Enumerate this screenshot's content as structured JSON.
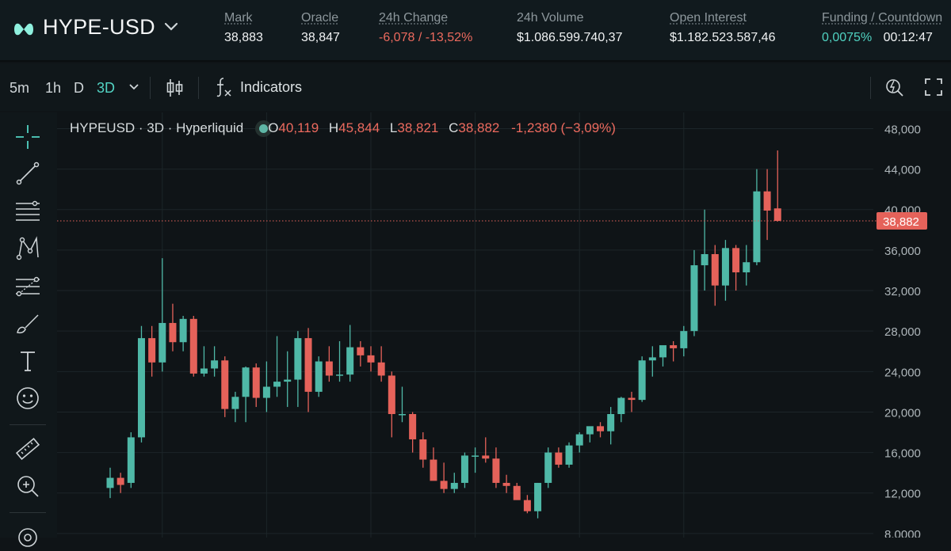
{
  "header": {
    "pair": "HYPE-USD",
    "stats": [
      {
        "label": "Mark",
        "value": "38,883",
        "tone": "normal"
      },
      {
        "label": "Oracle",
        "value": "38,847",
        "tone": "normal"
      },
      {
        "label": "24h Change",
        "value": "-6,078 / -13,52%",
        "tone": "red"
      },
      {
        "label": "24h Volume",
        "value": "$1.086.599.740,37",
        "tone": "normal"
      },
      {
        "label": "Open Interest",
        "value": "$1.182.523.587,46",
        "tone": "normal"
      },
      {
        "label": "Funding / Countdown",
        "value": "0,0075%",
        "value2": "00:12:47",
        "tone": "teal"
      }
    ]
  },
  "toolbar": {
    "timeframes": [
      "5m",
      "1h",
      "D",
      "3D"
    ],
    "active_timeframe": "3D",
    "indicators_label": "Indicators"
  },
  "left_tools": [
    "crosshair-icon",
    "trend-line-icon",
    "horizontal-lines-icon",
    "pattern-icon",
    "fib-icon",
    "brush-icon",
    "text-icon",
    "emoji-icon",
    "ruler-icon",
    "zoom-in-icon",
    "magnet-icon"
  ],
  "legend": {
    "symbol": "HYPEUSD · 3D · Hyperliquid",
    "o_label": "O",
    "o": "40,119",
    "h_label": "H",
    "h": "45,844",
    "l_label": "L",
    "l": "38,821",
    "c_label": "C",
    "c": "38,882",
    "change": "-1,2380 (−3,09%)"
  },
  "colors": {
    "up": "#4fb8a7",
    "down": "#e5625a",
    "bg": "#0f1417",
    "accent": "#52d3c3"
  },
  "chart_data": {
    "type": "candlestick",
    "y_axis_ticks": [
      {
        "value": 8,
        "label": "8,0000"
      },
      {
        "value": 12,
        "label": "12,000"
      },
      {
        "value": 16,
        "label": "16,000"
      },
      {
        "value": 20,
        "label": "20,000"
      },
      {
        "value": 24,
        "label": "24,000"
      },
      {
        "value": 28,
        "label": "28,000"
      },
      {
        "value": 32,
        "label": "32,000"
      },
      {
        "value": 36,
        "label": "36,000"
      },
      {
        "value": 40,
        "label": "40,000"
      },
      {
        "value": 44,
        "label": "44,000"
      },
      {
        "value": 48,
        "label": "48,000"
      }
    ],
    "ylim": [
      7.6,
      49.6
    ],
    "last_price": {
      "value": 38.882,
      "label": "38,882"
    },
    "grid": true,
    "candles": [
      {
        "o": 12.5,
        "h": 14.5,
        "l": 11.5,
        "c": 13.5
      },
      {
        "o": 13.5,
        "h": 14.0,
        "l": 12.0,
        "c": 12.8
      },
      {
        "o": 13.0,
        "h": 18.0,
        "l": 12.5,
        "c": 17.5
      },
      {
        "o": 17.5,
        "h": 28.5,
        "l": 17.0,
        "c": 27.3
      },
      {
        "o": 27.3,
        "h": 28.5,
        "l": 23.5,
        "c": 24.9
      },
      {
        "o": 24.9,
        "h": 35.2,
        "l": 24.0,
        "c": 28.8
      },
      {
        "o": 28.8,
        "h": 30.7,
        "l": 26.0,
        "c": 26.9
      },
      {
        "o": 26.9,
        "h": 29.5,
        "l": 26.0,
        "c": 29.2
      },
      {
        "o": 29.2,
        "h": 29.5,
        "l": 23.5,
        "c": 23.8
      },
      {
        "o": 23.8,
        "h": 26.5,
        "l": 23.5,
        "c": 24.3
      },
      {
        "o": 24.3,
        "h": 26.5,
        "l": 23.5,
        "c": 25.1
      },
      {
        "o": 25.1,
        "h": 25.5,
        "l": 19.5,
        "c": 20.3
      },
      {
        "o": 20.3,
        "h": 22.0,
        "l": 19.0,
        "c": 21.5
      },
      {
        "o": 21.5,
        "h": 24.5,
        "l": 19.0,
        "c": 24.4
      },
      {
        "o": 24.4,
        "h": 24.8,
        "l": 20.5,
        "c": 21.4
      },
      {
        "o": 21.4,
        "h": 25.0,
        "l": 20.0,
        "c": 22.5
      },
      {
        "o": 22.5,
        "h": 27.5,
        "l": 21.5,
        "c": 23.0
      },
      {
        "o": 23.0,
        "h": 26.0,
        "l": 20.5,
        "c": 23.2
      },
      {
        "o": 23.2,
        "h": 28.0,
        "l": 20.5,
        "c": 27.3
      },
      {
        "o": 27.3,
        "h": 28.3,
        "l": 20.0,
        "c": 22.0
      },
      {
        "o": 22.0,
        "h": 25.5,
        "l": 21.5,
        "c": 25.0
      },
      {
        "o": 25.0,
        "h": 26.5,
        "l": 23.0,
        "c": 23.6
      },
      {
        "o": 23.6,
        "h": 27.0,
        "l": 23.0,
        "c": 23.7
      },
      {
        "o": 23.7,
        "h": 28.6,
        "l": 23.0,
        "c": 26.4
      },
      {
        "o": 26.4,
        "h": 27.0,
        "l": 24.5,
        "c": 25.6
      },
      {
        "o": 25.6,
        "h": 26.5,
        "l": 24.0,
        "c": 24.9
      },
      {
        "o": 24.9,
        "h": 26.5,
        "l": 23.0,
        "c": 23.6
      },
      {
        "o": 23.6,
        "h": 24.0,
        "l": 17.5,
        "c": 19.8
      },
      {
        "o": 19.8,
        "h": 22.5,
        "l": 19.0,
        "c": 19.8
      },
      {
        "o": 19.8,
        "h": 20.0,
        "l": 16.0,
        "c": 17.3
      },
      {
        "o": 17.3,
        "h": 18.0,
        "l": 14.5,
        "c": 15.3
      },
      {
        "o": 15.3,
        "h": 16.5,
        "l": 13.5,
        "c": 13.2
      },
      {
        "o": 13.2,
        "h": 15.0,
        "l": 12.0,
        "c": 12.4
      },
      {
        "o": 12.4,
        "h": 14.0,
        "l": 12.0,
        "c": 13.0
      },
      {
        "o": 13.0,
        "h": 16.0,
        "l": 12.5,
        "c": 15.7
      },
      {
        "o": 15.7,
        "h": 16.5,
        "l": 14.0,
        "c": 15.7
      },
      {
        "o": 15.7,
        "h": 17.5,
        "l": 15.0,
        "c": 15.4
      },
      {
        "o": 15.4,
        "h": 16.5,
        "l": 12.5,
        "c": 13.0
      },
      {
        "o": 13.0,
        "h": 13.8,
        "l": 12.0,
        "c": 12.7
      },
      {
        "o": 12.7,
        "h": 13.0,
        "l": 11.5,
        "c": 11.3
      },
      {
        "o": 11.3,
        "h": 11.8,
        "l": 10.0,
        "c": 10.2
      },
      {
        "o": 10.2,
        "h": 13.0,
        "l": 9.5,
        "c": 13.0
      },
      {
        "o": 13.0,
        "h": 16.5,
        "l": 12.5,
        "c": 16.0
      },
      {
        "o": 16.0,
        "h": 16.5,
        "l": 14.5,
        "c": 14.8
      },
      {
        "o": 14.8,
        "h": 17.0,
        "l": 14.5,
        "c": 16.7
      },
      {
        "o": 16.7,
        "h": 18.0,
        "l": 16.0,
        "c": 17.8
      },
      {
        "o": 17.8,
        "h": 18.5,
        "l": 17.0,
        "c": 18.6
      },
      {
        "o": 18.6,
        "h": 19.0,
        "l": 17.5,
        "c": 18.1
      },
      {
        "o": 18.1,
        "h": 20.5,
        "l": 16.8,
        "c": 19.8
      },
      {
        "o": 19.8,
        "h": 21.5,
        "l": 19.0,
        "c": 21.4
      },
      {
        "o": 21.4,
        "h": 22.0,
        "l": 20.0,
        "c": 21.2
      },
      {
        "o": 21.2,
        "h": 25.5,
        "l": 21.0,
        "c": 25.1
      },
      {
        "o": 25.1,
        "h": 26.5,
        "l": 23.5,
        "c": 25.4
      },
      {
        "o": 25.4,
        "h": 26.5,
        "l": 24.5,
        "c": 26.6
      },
      {
        "o": 26.6,
        "h": 27.0,
        "l": 25.0,
        "c": 26.3
      },
      {
        "o": 26.3,
        "h": 28.5,
        "l": 25.5,
        "c": 28.0
      },
      {
        "o": 28.0,
        "h": 36.0,
        "l": 27.5,
        "c": 34.5
      },
      {
        "o": 34.5,
        "h": 40.0,
        "l": 32.0,
        "c": 35.6
      },
      {
        "o": 35.6,
        "h": 36.5,
        "l": 30.5,
        "c": 32.5
      },
      {
        "o": 32.5,
        "h": 37.0,
        "l": 31.0,
        "c": 36.2
      },
      {
        "o": 36.2,
        "h": 36.5,
        "l": 32.0,
        "c": 33.8
      },
      {
        "o": 33.8,
        "h": 36.5,
        "l": 32.5,
        "c": 34.8
      },
      {
        "o": 34.8,
        "h": 44.0,
        "l": 34.5,
        "c": 41.8
      },
      {
        "o": 41.8,
        "h": 44.0,
        "l": 37.0,
        "c": 39.9
      },
      {
        "o": 40.119,
        "h": 45.844,
        "l": 38.821,
        "c": 38.882
      }
    ]
  }
}
